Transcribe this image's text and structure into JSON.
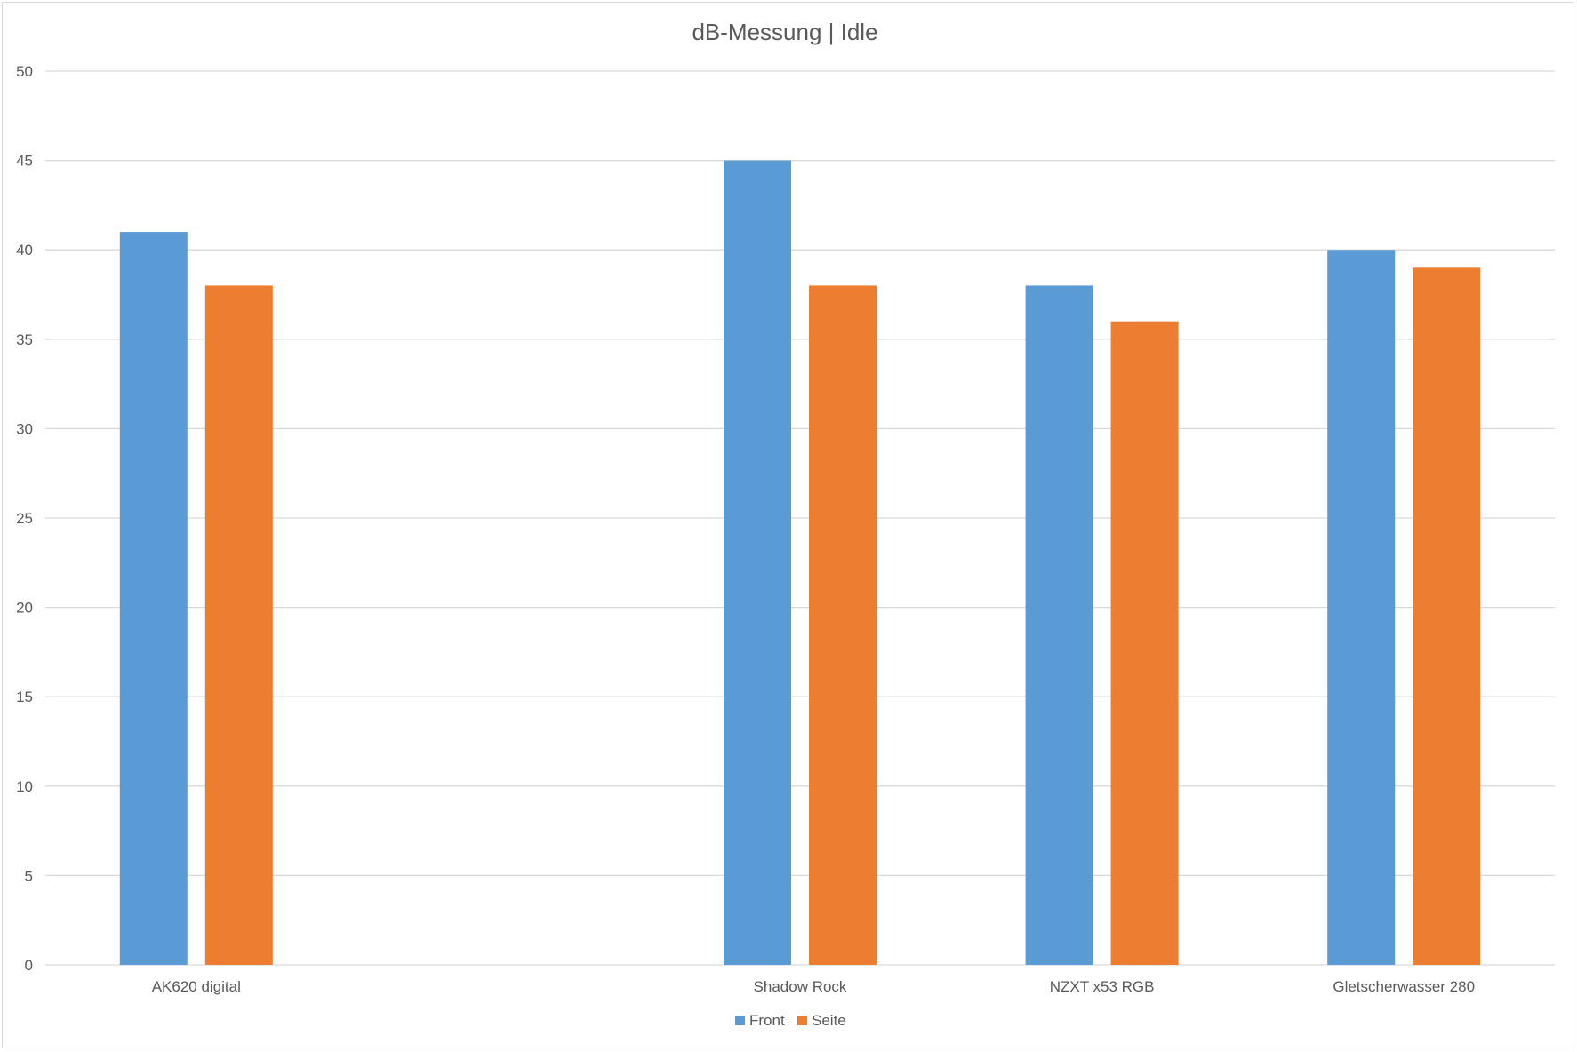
{
  "chart_data": {
    "type": "bar",
    "title": "dB-Messung | Idle",
    "xlabel": "",
    "ylabel": "",
    "categories": [
      "AK620 digital",
      "",
      "Shadow Rock",
      "NZXT x53 RGB",
      "Gletscherwasser 280"
    ],
    "series": [
      {
        "name": "Front",
        "color": "#5b9bd5",
        "values": [
          41,
          null,
          45,
          38,
          40
        ]
      },
      {
        "name": "Seite",
        "color": "#ed7d31",
        "values": [
          38,
          null,
          38,
          36,
          39
        ]
      }
    ],
    "ylim": [
      0,
      50
    ],
    "yticks": [
      0,
      5,
      10,
      15,
      20,
      25,
      30,
      35,
      40,
      45,
      50
    ],
    "grid": true,
    "legend_position": "bottom",
    "colors": {
      "gridline": "#d9d9d9",
      "text": "#595959"
    }
  }
}
